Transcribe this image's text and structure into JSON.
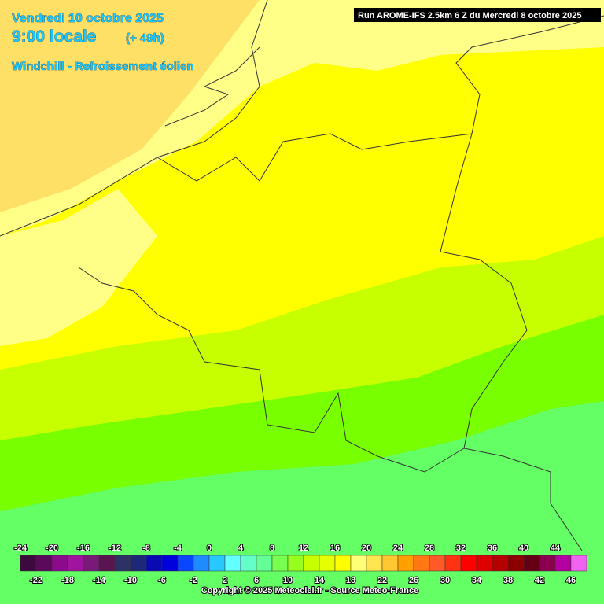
{
  "header": {
    "date": "Vendredi 10 octobre 2025",
    "time": "9:00 locale",
    "lead": "(+ 49h)",
    "product": "Windchill - Refroissement éolien",
    "run": "Run AROME-IFS 2.5km 6 Z du Mercredi 8 octobre 2025"
  },
  "legend": {
    "ticks_top": [
      -24,
      -20,
      -16,
      -12,
      -8,
      -4,
      0,
      4,
      8,
      12,
      16,
      20,
      24,
      28,
      32,
      36,
      40,
      44
    ],
    "ticks_bottom": [
      -22,
      -18,
      -14,
      -10,
      -6,
      -2,
      2,
      6,
      10,
      14,
      18,
      22,
      26,
      30,
      34,
      38,
      42,
      46
    ],
    "colors": [
      "#3c0a3c",
      "#5a0a5a",
      "#8c0a8c",
      "#a014a0",
      "#7a1a78",
      "#5a1450",
      "#2d3264",
      "#1e2878",
      "#0a0ab4",
      "#0000dc",
      "#0a46ff",
      "#1e8cff",
      "#28c8ff",
      "#64ffff",
      "#64ffc8",
      "#64ff96",
      "#78ff50",
      "#96ff1e",
      "#c8ff00",
      "#e6ff00",
      "#ffff00",
      "#ffff78",
      "#ffe650",
      "#ffc832",
      "#ffa000",
      "#ff7814",
      "#ff5a28",
      "#ff3214",
      "#ff0000",
      "#dc0000",
      "#b40000",
      "#8c0000",
      "#640014",
      "#8c0050",
      "#b400a0",
      "#f064f0"
    ]
  },
  "footer": {
    "copyright": "Copyright © 2025 Meteociel.fr - Source Meteo-France"
  }
}
